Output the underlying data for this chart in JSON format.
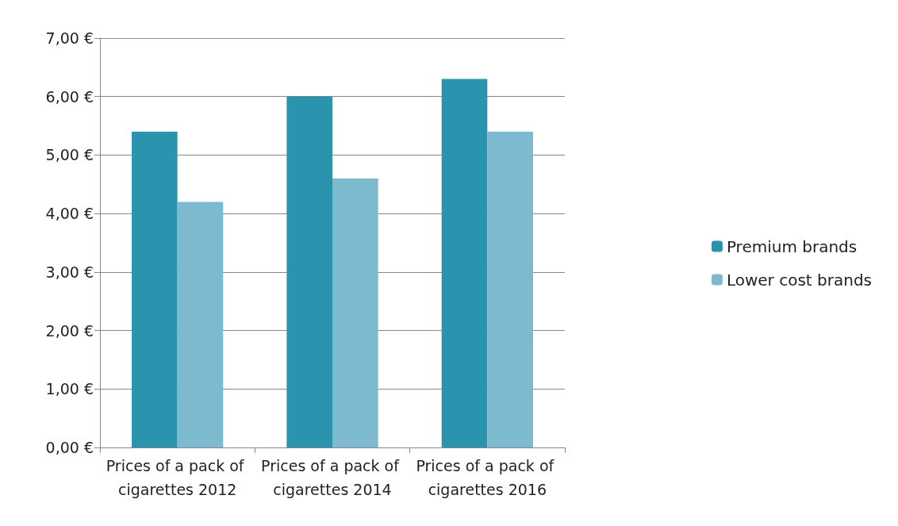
{
  "chart_data": {
    "type": "bar",
    "categories": [
      "Prices of a pack of cigarettes 2012",
      "Prices of a pack of cigarettes 2014",
      "Prices of a pack of cigarettes 2016"
    ],
    "series": [
      {
        "name": "Premium brands",
        "color": "#2a93ad",
        "values": [
          5.4,
          6.0,
          6.3
        ]
      },
      {
        "name": "Lower cost brands",
        "color": "#7dbad0",
        "values": [
          4.2,
          4.6,
          5.4
        ]
      }
    ],
    "ylim": [
      0,
      7
    ],
    "yticks": [
      {
        "value": 0,
        "label": "0,00 €"
      },
      {
        "value": 1,
        "label": "1,00 €"
      },
      {
        "value": 2,
        "label": "2,00 €"
      },
      {
        "value": 3,
        "label": "3,00 €"
      },
      {
        "value": 4,
        "label": "4,00 €"
      },
      {
        "value": 5,
        "label": "5,00 €"
      },
      {
        "value": 6,
        "label": "6,00 €"
      },
      {
        "value": 7,
        "label": "7,00 €"
      }
    ],
    "grid": "y",
    "legend": "right"
  }
}
